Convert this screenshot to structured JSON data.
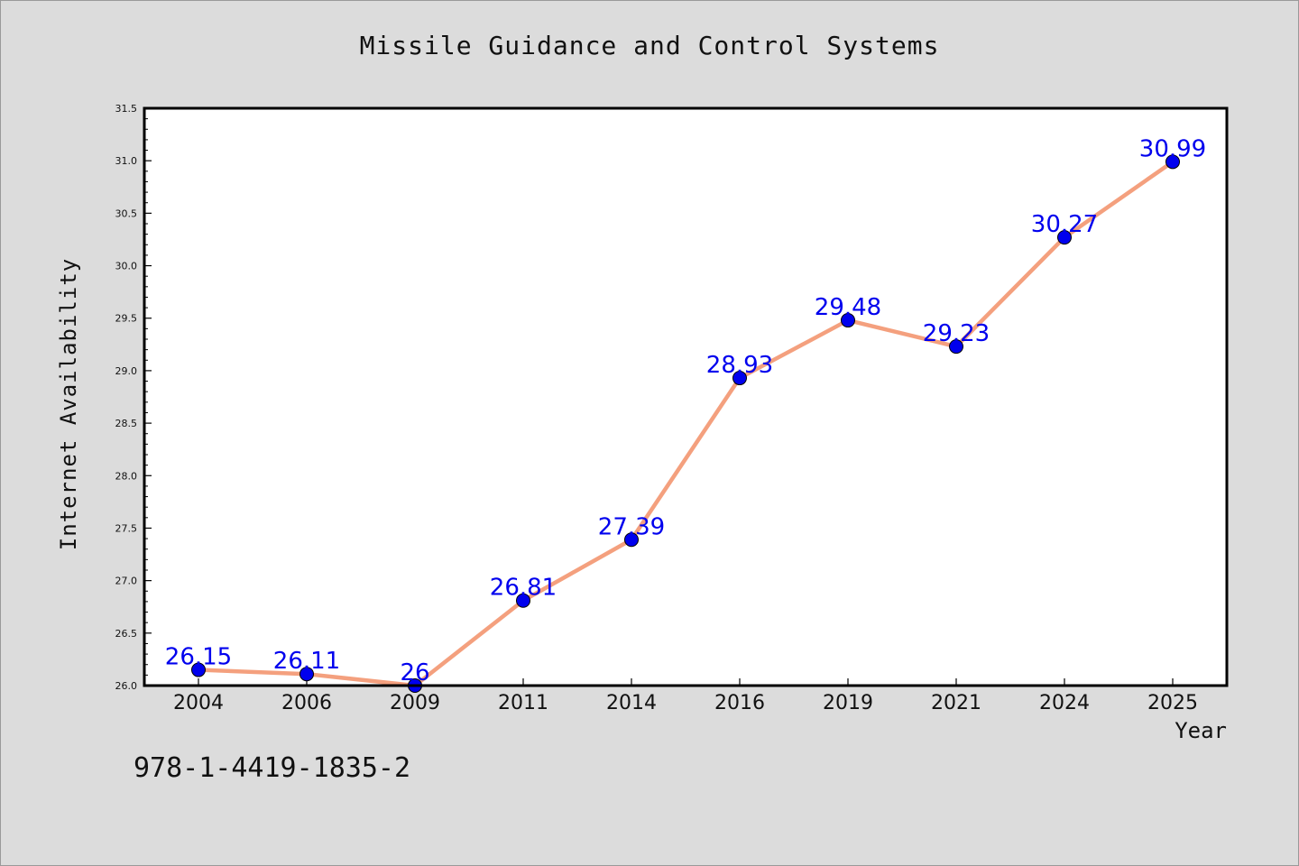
{
  "chart_data": {
    "type": "line",
    "title": "Missile Guidance and Control Systems",
    "xlabel": "Year",
    "ylabel": "Internet Availability",
    "categories": [
      "2004",
      "2006",
      "2009",
      "2011",
      "2014",
      "2016",
      "2019",
      "2021",
      "2024",
      "2025"
    ],
    "series": [
      {
        "values": [
          26.15,
          26.11,
          26,
          26.81,
          27.39,
          28.93,
          29.48,
          29.23,
          30.27,
          30.99
        ],
        "labels": [
          "26.15",
          "26.11",
          "26",
          "26.81",
          "27.39",
          "28.93",
          "29.48",
          "29.23",
          "30.27",
          "30.99"
        ],
        "line_color": "#f4a07e",
        "marker_color": "#0000ee",
        "label_color": "#0000ee"
      }
    ],
    "ylim": [
      26.0,
      31.5
    ],
    "yticks": [
      "26.0",
      "26.5",
      "27.0",
      "27.5",
      "28.0",
      "28.5",
      "29.0",
      "29.5",
      "30.0",
      "30.5",
      "31.0",
      "31.5"
    ],
    "grid": false,
    "legend": "none"
  },
  "footnote": "978-1-4419-1835-2",
  "colors": {
    "background": "#dcdcdc",
    "plot_area": "#ffffff"
  }
}
